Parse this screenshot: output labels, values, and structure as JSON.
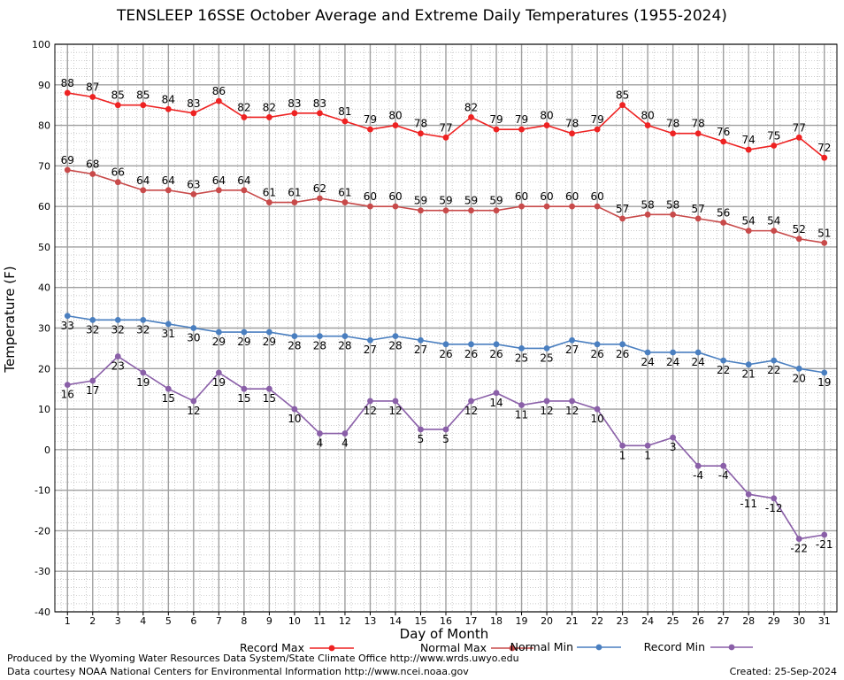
{
  "chart_data": {
    "type": "line",
    "title": "TENSLEEP 16SSE October Average and Extreme Daily Temperatures (1955-2024)",
    "xlabel": "Day of Month",
    "ylabel": "Temperature (F)",
    "ylim": [
      -40,
      100
    ],
    "x": [
      1,
      2,
      3,
      4,
      5,
      6,
      7,
      8,
      9,
      10,
      11,
      12,
      13,
      14,
      15,
      16,
      17,
      18,
      19,
      20,
      21,
      22,
      23,
      24,
      25,
      26,
      27,
      28,
      29,
      30,
      31
    ],
    "y_ticks": [
      100,
      90,
      80,
      70,
      60,
      50,
      40,
      30,
      20,
      10,
      0,
      -10,
      -20,
      -30,
      -40
    ],
    "grid": true,
    "legend_position": "bottom",
    "series": [
      {
        "name": "Record Max",
        "color": "#ee2222",
        "label_side": "above",
        "values": [
          88,
          87,
          85,
          85,
          84,
          83,
          86,
          82,
          82,
          83,
          83,
          81,
          79,
          80,
          78,
          77,
          82,
          79,
          79,
          80,
          78,
          79,
          85,
          80,
          78,
          78,
          76,
          74,
          75,
          77,
          72
        ]
      },
      {
        "name": "Normal Max",
        "color": "#c84a4a",
        "label_side": "above",
        "values": [
          69,
          68,
          66,
          64,
          64,
          63,
          64,
          64,
          61,
          61,
          62,
          61,
          60,
          60,
          59,
          59,
          59,
          59,
          60,
          60,
          60,
          60,
          57,
          58,
          58,
          57,
          56,
          54,
          54,
          52,
          51
        ]
      },
      {
        "name": "Normal Min",
        "color": "#4a7fc0",
        "label_side": "below",
        "values": [
          33,
          32,
          32,
          32,
          31,
          30,
          29,
          29,
          29,
          28,
          28,
          28,
          27,
          28,
          27,
          26,
          26,
          26,
          25,
          25,
          27,
          26,
          26,
          24,
          24,
          24,
          22,
          21,
          22,
          20,
          19
        ]
      },
      {
        "name": "Record Min",
        "color": "#8a5fa8",
        "label_side": "below",
        "values": [
          16,
          17,
          23,
          19,
          15,
          12,
          19,
          15,
          15,
          10,
          4,
          4,
          12,
          12,
          5,
          5,
          12,
          14,
          11,
          12,
          12,
          10,
          1,
          1,
          3,
          -4,
          -4,
          -11,
          -12,
          -22,
          -21
        ]
      }
    ]
  },
  "footer": {
    "credit_line1": "Produced by the Wyoming Water Resources Data System/State Climate Office http://www.wrds.uwyo.edu",
    "credit_line2": "Data courtesy NOAA National Centers for Environmental Information http://www.ncei.noaa.gov",
    "created": "Created:  25-Sep-2024"
  }
}
